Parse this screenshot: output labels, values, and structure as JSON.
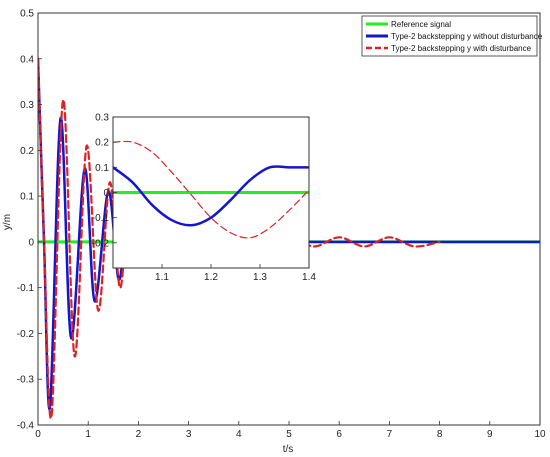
{
  "chart_data": [
    {
      "type": "line",
      "xlabel": "t/s",
      "ylabel": "y/m",
      "xlim": [
        0,
        10
      ],
      "ylim": [
        -0.4,
        0.5
      ],
      "xticks": [
        "0",
        "1",
        "2",
        "3",
        "4",
        "5",
        "6",
        "7",
        "8",
        "9",
        "10"
      ],
      "yticks": [
        "-0.4",
        "-0.3",
        "-0.2",
        "-0.1",
        "0",
        "0.1",
        "0.2",
        "0.3",
        "0.4",
        "0.5"
      ],
      "grid": false,
      "legend_position": "top-right",
      "series": [
        {
          "name": "Reference signal",
          "color": "#22ee22",
          "style": "solid",
          "x": [
            0,
            10
          ],
          "y": [
            0,
            0
          ]
        },
        {
          "name": "Type-2 backstepping y without disturbance",
          "color": "#1515cc",
          "style": "solid",
          "x": [
            0,
            0.12,
            0.24,
            0.45,
            0.66,
            0.93,
            1.13,
            1.4,
            1.6,
            1.75,
            2.0,
            2.5,
            3.0,
            4.0,
            5.0,
            6.0,
            7.0,
            8.0,
            10.0
          ],
          "y": [
            0.4,
            0.0,
            -0.36,
            0.27,
            -0.21,
            0.16,
            -0.13,
            0.11,
            -0.08,
            0.0,
            0.0,
            0.0,
            0.0,
            0.0,
            0.0,
            0.0,
            0.0,
            0.0,
            0.0
          ]
        },
        {
          "name": "Type-2 backstepping y with disturbance",
          "color": "#dd2222",
          "style": "dashed",
          "x": [
            0,
            0.12,
            0.27,
            0.5,
            0.73,
            0.97,
            1.2,
            1.43,
            1.63,
            1.8,
            2.0,
            2.3,
            2.6,
            3.0,
            3.5,
            4.0,
            4.5,
            5.0,
            5.5,
            6.0,
            6.5,
            7.0,
            7.5,
            8.0
          ],
          "y": [
            0.4,
            0.0,
            -0.38,
            0.31,
            -0.25,
            0.21,
            -0.15,
            0.13,
            -0.1,
            0.06,
            -0.03,
            0.02,
            -0.02,
            0.01,
            -0.01,
            0.01,
            -0.01,
            0.01,
            -0.01,
            0.01,
            -0.01,
            0.01,
            -0.01,
            0.0
          ]
        }
      ]
    },
    {
      "type": "line",
      "title": "",
      "xlim": [
        1,
        1.4
      ],
      "ylim": [
        -0.3,
        0.3
      ],
      "xticks": [
        "1.1",
        "1.2",
        "1.3",
        "1.4"
      ],
      "yticks": [
        "-0.2",
        "-0.1",
        "0",
        "0.1",
        "0.2",
        "0.3"
      ],
      "grid": false,
      "series": [
        {
          "name": "Reference signal",
          "color": "#22ee22",
          "style": "solid",
          "x": [
            1.0,
            1.4
          ],
          "y": [
            0.0,
            0.0
          ]
        },
        {
          "name": "Type-2 backstepping y without disturbance",
          "color": "#1515cc",
          "style": "solid",
          "x": [
            1.0,
            1.04,
            1.08,
            1.12,
            1.16,
            1.2,
            1.24,
            1.28,
            1.32,
            1.36,
            1.4
          ],
          "y": [
            0.1,
            0.04,
            -0.05,
            -0.11,
            -0.13,
            -0.1,
            -0.03,
            0.05,
            0.1,
            0.1,
            0.1
          ]
        },
        {
          "name": "Type-2 backstepping y with disturbance",
          "color": "#dd2222",
          "style": "dashed",
          "x": [
            1.0,
            1.04,
            1.08,
            1.12,
            1.16,
            1.2,
            1.24,
            1.28,
            1.32,
            1.36,
            1.4
          ],
          "y": [
            0.2,
            0.2,
            0.16,
            0.08,
            -0.01,
            -0.1,
            -0.16,
            -0.18,
            -0.14,
            -0.07,
            0.01
          ]
        }
      ]
    }
  ]
}
